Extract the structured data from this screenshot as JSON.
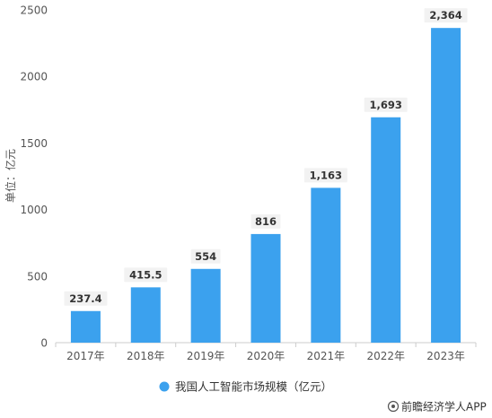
{
  "chart_data": {
    "type": "bar",
    "title": "",
    "categories": [
      "2017年",
      "2018年",
      "2019年",
      "2020年",
      "2021年",
      "2022年",
      "2023年"
    ],
    "series": [
      {
        "name": "我国人工智能市场规模（亿元）",
        "values": [
          237.4,
          415.5,
          554,
          816,
          1163,
          1693,
          2364
        ]
      }
    ],
    "data_labels": [
      "237.4",
      "415.5",
      "554",
      "816",
      "1,163",
      "1,693",
      "2,364"
    ],
    "ylabel": "单位：亿元",
    "xlabel": "",
    "ylim": [
      0,
      2500
    ],
    "yticks": [
      0,
      500,
      1000,
      1500,
      2000,
      2500
    ],
    "grid": false,
    "legend_position": "bottom",
    "bar_color": "#3ba1ee",
    "label_box_color": "#f2f2f2"
  },
  "source": "前瞻经济学人APP",
  "colors": {
    "axis": "#cccccc",
    "bar": "#3ba1ee",
    "label_bg": "#f2f2f2"
  }
}
